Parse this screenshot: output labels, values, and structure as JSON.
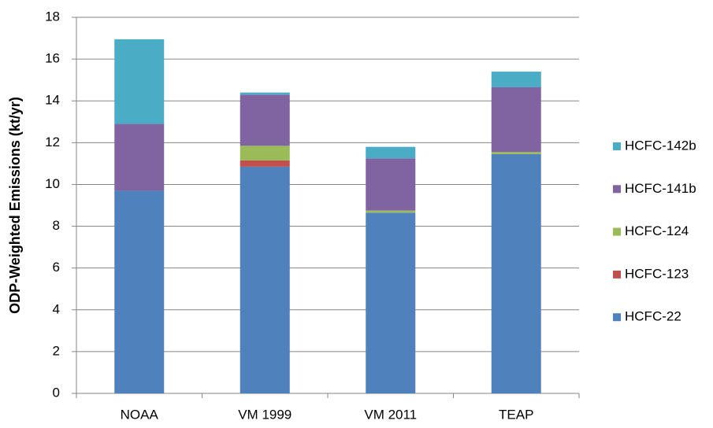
{
  "chart_data": {
    "type": "stacked-bar",
    "y_label": "ODP-Weighted Emissions (kt/yr)",
    "categories": [
      "NOAA",
      "VM 1999",
      "VM 2011",
      "TEAP"
    ],
    "series": [
      {
        "name": "HCFC-22",
        "color": "#4f81bd",
        "values": [
          9.7,
          10.85,
          8.65,
          11.45
        ]
      },
      {
        "name": "HCFC-123",
        "color": "#c0504d",
        "values": [
          0,
          0.3,
          0,
          0
        ]
      },
      {
        "name": "HCFC-124",
        "color": "#9bbb59",
        "values": [
          0,
          0.7,
          0.1,
          0.1
        ]
      },
      {
        "name": "HCFC-141b",
        "color": "#8064a2",
        "values": [
          3.2,
          2.45,
          2.5,
          3.1
        ]
      },
      {
        "name": "HCFC-142b",
        "color": "#4bacc6",
        "values": [
          4.05,
          0.1,
          0.55,
          0.75
        ]
      }
    ],
    "ylim": [
      0,
      18
    ],
    "yticks": [
      0,
      2,
      4,
      6,
      8,
      10,
      12,
      14,
      16,
      18
    ],
    "grid": true,
    "legend": "right"
  }
}
